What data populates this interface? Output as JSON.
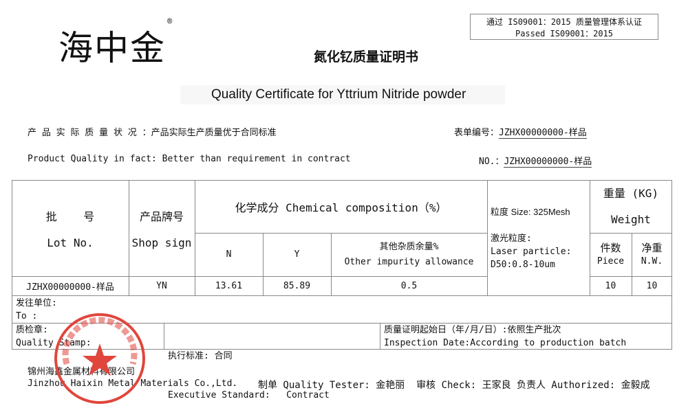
{
  "header": {
    "logo_text": "海中金",
    "logo_mark": "®",
    "iso_cn": "通过 IS09001：2015 质量管理体系认证",
    "iso_en": "Passed  IS09001：2015",
    "title_cn": "氮化钇质量证明书",
    "title_en": "Quality Certificate for Yttrium Nitride powder"
  },
  "info": {
    "quality_cn": "产 品 实 际 质 量 状 况 ：产品实际生产质量优于合同标准",
    "form_no_label": "表单编号：",
    "form_no": "JZHX00000000-样品",
    "quality_en": "Product Quality in fact: Better than requirement in contract",
    "no_label": "NO.：",
    "no": "JZHX00000000-样品"
  },
  "table": {
    "lot_cn": "批    号",
    "lot_en": "Lot No.",
    "shop_cn": "产品牌号",
    "shop_en": "Shop sign",
    "chem_header": "化学成分 Chemical composition（%）",
    "col_n": "N",
    "col_y": "Y",
    "other_cn": "其他杂质余量%",
    "other_en": "Other impurity allowance",
    "size": "粒度 Size: 325Mesh",
    "laser_cn": "激光粒度:",
    "laser_en": "Laser particle:",
    "laser_d50": "D50:0.8-10um",
    "weight_cn": "重量 (KG)",
    "weight_en": "Weight",
    "piece_cn": "件数",
    "piece_en": "Piece",
    "nw_cn": "净重",
    "nw_en": "N.W.",
    "row": {
      "lot": "JZHX00000000-样品",
      "shop": "YN",
      "n": "13.61",
      "y": "85.89",
      "other": "0.5",
      "piece": "10",
      "nw": "10"
    }
  },
  "to": {
    "cn": "发往单位:",
    "en": "To :"
  },
  "stamp_row": {
    "stamp_cn": "质检章:",
    "stamp_en": "Quality Stamp:",
    "std_cn": "执行标准: 合同",
    "std_en": "Executive Standard:   Contract",
    "date_cn": "质量证明起始日（年/月/日）:依照生产批次",
    "date_en": "Inspection Date:According to production batch"
  },
  "footer": {
    "company_cn": "锦州海鑫金属材料有限公司",
    "company_en": "Jinzhou Haixin Metal Materials Co.,Ltd.",
    "signatures": "制单 Quality Tester: 金艳丽  审核 Check: 王家良 负责人 Authorized: 金毅成"
  },
  "stamp": {
    "text": "锦州海鑫金属材料有限公司",
    "color": "#e0463c"
  }
}
